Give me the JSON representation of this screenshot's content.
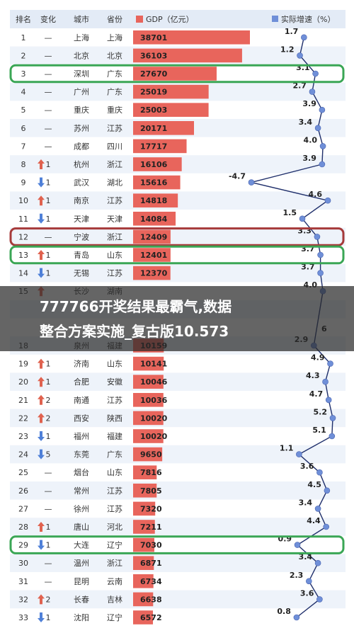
{
  "chart_data": {
    "type": "table",
    "headers": {
      "rank": "排名",
      "change": "变化",
      "city": "城市",
      "province": "省份",
      "gdp": "GDP（亿元）",
      "growth": "实际增速（%）"
    },
    "rows": [
      {
        "rank": "1",
        "change": "—",
        "dir": "none",
        "city": "上海",
        "province": "上海",
        "gdp": 38701,
        "growth": 1.7
      },
      {
        "rank": "2",
        "change": "—",
        "dir": "none",
        "city": "北京",
        "province": "北京",
        "gdp": 36103,
        "growth": 1.2
      },
      {
        "rank": "3",
        "change": "—",
        "dir": "none",
        "city": "深圳",
        "province": "广东",
        "gdp": 27670,
        "growth": 3.1
      },
      {
        "rank": "4",
        "change": "—",
        "dir": "none",
        "city": "广州",
        "province": "广东",
        "gdp": 25019,
        "growth": 2.7
      },
      {
        "rank": "5",
        "change": "—",
        "dir": "none",
        "city": "重庆",
        "province": "重庆",
        "gdp": 25003,
        "growth": 3.9
      },
      {
        "rank": "6",
        "change": "—",
        "dir": "none",
        "city": "苏州",
        "province": "江苏",
        "gdp": 20171,
        "growth": 3.4
      },
      {
        "rank": "7",
        "change": "—",
        "dir": "none",
        "city": "成都",
        "province": "四川",
        "gdp": 17717,
        "growth": 4.0
      },
      {
        "rank": "8",
        "change": "1",
        "dir": "up",
        "city": "杭州",
        "province": "浙江",
        "gdp": 16106,
        "growth": 3.9
      },
      {
        "rank": "9",
        "change": "1",
        "dir": "down",
        "city": "武汉",
        "province": "湖北",
        "gdp": 15616,
        "growth": -4.7
      },
      {
        "rank": "10",
        "change": "1",
        "dir": "up",
        "city": "南京",
        "province": "江苏",
        "gdp": 14818,
        "growth": 4.6
      },
      {
        "rank": "11",
        "change": "1",
        "dir": "down",
        "city": "天津",
        "province": "天津",
        "gdp": 14084,
        "growth": 1.5
      },
      {
        "rank": "12",
        "change": "—",
        "dir": "none",
        "city": "宁波",
        "province": "浙江",
        "gdp": 12409,
        "growth": 3.3
      },
      {
        "rank": "13",
        "change": "1",
        "dir": "up",
        "city": "青岛",
        "province": "山东",
        "gdp": 12401,
        "growth": 3.7
      },
      {
        "rank": "14",
        "change": "1",
        "dir": "down",
        "city": "无锡",
        "province": "江苏",
        "gdp": 12370,
        "growth": 3.7
      },
      {
        "rank": "15",
        "change": "",
        "dir": "up",
        "city": "长沙",
        "province": "湖南",
        "gdp": null,
        "growth": 4.0
      },
      {
        "rank": "",
        "change": "",
        "dir": "none",
        "city": "",
        "province": "",
        "gdp": null,
        "growth": null
      },
      {
        "rank": "",
        "change": "",
        "dir": "none",
        "city": "",
        "province": "",
        "gdp": null,
        "growth": null
      },
      {
        "rank": "18",
        "change": "",
        "dir": "none",
        "city": "泉州",
        "province": "福建",
        "gdp": 10159,
        "growth": 2.9
      },
      {
        "rank": "19",
        "change": "1",
        "dir": "up",
        "city": "济南",
        "province": "山东",
        "gdp": 10141,
        "growth": 4.9
      },
      {
        "rank": "20",
        "change": "1",
        "dir": "up",
        "city": "合肥",
        "province": "安徽",
        "gdp": 10046,
        "growth": 4.3
      },
      {
        "rank": "21",
        "change": "2",
        "dir": "up",
        "city": "南通",
        "province": "江苏",
        "gdp": 10036,
        "growth": 4.7
      },
      {
        "rank": "22",
        "change": "2",
        "dir": "up",
        "city": "西安",
        "province": "陕西",
        "gdp": 10020,
        "growth": 5.2
      },
      {
        "rank": "23",
        "change": "1",
        "dir": "down",
        "city": "福州",
        "province": "福建",
        "gdp": 10020,
        "growth": 5.1
      },
      {
        "rank": "24",
        "change": "5",
        "dir": "down",
        "city": "东莞",
        "province": "广东",
        "gdp": 9650,
        "growth": 1.1
      },
      {
        "rank": "25",
        "change": "—",
        "dir": "none",
        "city": "烟台",
        "province": "山东",
        "gdp": 7816,
        "growth": 3.6
      },
      {
        "rank": "26",
        "change": "—",
        "dir": "none",
        "city": "常州",
        "province": "江苏",
        "gdp": 7805,
        "growth": 4.5
      },
      {
        "rank": "27",
        "change": "—",
        "dir": "none",
        "city": "徐州",
        "province": "江苏",
        "gdp": 7320,
        "growth": 3.4
      },
      {
        "rank": "28",
        "change": "1",
        "dir": "up",
        "city": "唐山",
        "province": "河北",
        "gdp": 7211,
        "growth": 4.4
      },
      {
        "rank": "29",
        "change": "1",
        "dir": "down",
        "city": "大连",
        "province": "辽宁",
        "gdp": 7030,
        "growth": 0.9
      },
      {
        "rank": "30",
        "change": "—",
        "dir": "none",
        "city": "温州",
        "province": "浙江",
        "gdp": 6871,
        "growth": 3.4
      },
      {
        "rank": "31",
        "change": "—",
        "dir": "none",
        "city": "昆明",
        "province": "云南",
        "gdp": 6734,
        "growth": 2.3
      },
      {
        "rank": "32",
        "change": "2",
        "dir": "up",
        "city": "长春",
        "province": "吉林",
        "gdp": 6638,
        "growth": 3.6
      },
      {
        "rank": "33",
        "change": "1",
        "dir": "down",
        "city": "沈阳",
        "province": "辽宁",
        "gdp": 6572,
        "growth": 0.8
      }
    ],
    "growth_axis_range": [
      -4.7,
      5.2
    ],
    "gdp_axis_range": [
      0,
      38701
    ],
    "highlighted_rows": [
      {
        "rank": "3",
        "color": "#3aa655"
      },
      {
        "rank": "12",
        "color": "#a63a3a"
      },
      {
        "rank": "13",
        "color": "#3aa655"
      },
      {
        "rank": "29",
        "color": "#3aa655"
      }
    ],
    "grid": false
  },
  "overlay": {
    "line1": "777766开奖结果最霸气,数据",
    "line2": "整合方案实施_复古版10.573",
    "partial_value_1": "6"
  },
  "colors": {
    "header_bg": "#e3ebf6",
    "row_alt_bg": "#eef3fa",
    "bar": "#e8655c",
    "legend_bar": "#e8655c",
    "line": "#1f2f6b",
    "dot": "#6f8fd8",
    "arrow_up": "#e0624f",
    "arrow_down": "#4f80d8",
    "green_frame": "#3aa655",
    "red_frame": "#a63a3a",
    "overlay_band": "#2a2a2a"
  }
}
